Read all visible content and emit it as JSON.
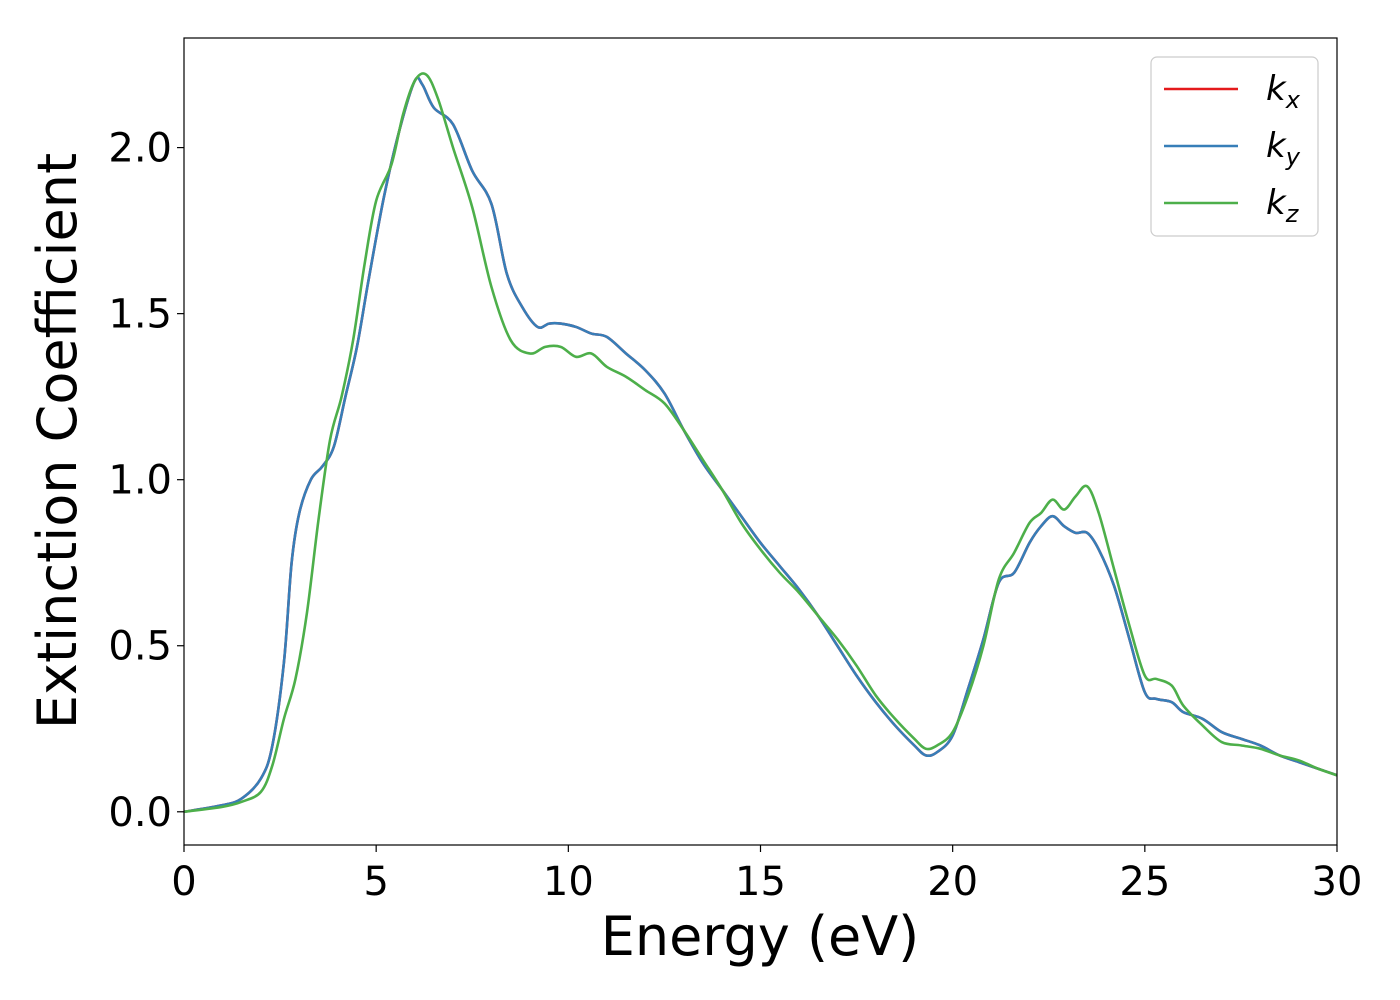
{
  "chart_data": {
    "type": "line",
    "xlabel": "Energy (eV)",
    "ylabel": "Extinction Coefficient",
    "xlim": [
      0,
      30
    ],
    "ylim": [
      -0.1,
      2.33
    ],
    "xticks": [
      0,
      5,
      10,
      15,
      20,
      25,
      30
    ],
    "xtick_labels": [
      "0",
      "5",
      "10",
      "15",
      "20",
      "25",
      "30"
    ],
    "yticks": [
      0.0,
      0.5,
      1.0,
      1.5,
      2.0
    ],
    "ytick_labels": [
      "0.0",
      "0.5",
      "1.0",
      "1.5",
      "2.0"
    ],
    "grid": false,
    "legend_position": "top-right",
    "series": [
      {
        "name": "k",
        "subscript": "x",
        "color": "#e41a1c",
        "x": [
          0,
          1,
          1.5,
          2,
          2.3,
          2.6,
          2.8,
          3,
          3.3,
          3.6,
          3.9,
          4.2,
          4.5,
          4.8,
          5.2,
          5.6,
          6.0,
          6.2,
          6.5,
          7.0,
          7.5,
          8.0,
          8.4,
          8.8,
          9.2,
          9.5,
          9.8,
          10.2,
          10.6,
          11.0,
          11.5,
          12.0,
          12.5,
          13.0,
          13.5,
          14.0,
          14.5,
          15.0,
          15.5,
          16.0,
          16.5,
          17.0,
          17.5,
          18.0,
          18.5,
          19.0,
          19.3,
          19.6,
          20.0,
          20.4,
          20.8,
          21.2,
          21.6,
          22.0,
          22.3,
          22.6,
          22.9,
          23.2,
          23.5,
          23.8,
          24.2,
          24.6,
          25.0,
          25.3,
          25.7,
          26.0,
          26.5,
          27.0,
          27.5,
          28.0,
          28.5,
          29.0,
          29.5,
          30.0
        ],
        "y": [
          0,
          0.02,
          0.04,
          0.1,
          0.2,
          0.45,
          0.75,
          0.9,
          1.0,
          1.04,
          1.1,
          1.25,
          1.4,
          1.6,
          1.85,
          2.05,
          2.2,
          2.19,
          2.12,
          2.07,
          1.93,
          1.83,
          1.62,
          1.52,
          1.46,
          1.47,
          1.47,
          1.46,
          1.44,
          1.43,
          1.38,
          1.33,
          1.26,
          1.15,
          1.05,
          0.97,
          0.89,
          0.81,
          0.74,
          0.67,
          0.59,
          0.5,
          0.41,
          0.33,
          0.26,
          0.2,
          0.17,
          0.18,
          0.23,
          0.37,
          0.52,
          0.69,
          0.72,
          0.81,
          0.86,
          0.89,
          0.86,
          0.84,
          0.84,
          0.79,
          0.68,
          0.52,
          0.36,
          0.34,
          0.33,
          0.3,
          0.28,
          0.24,
          0.22,
          0.2,
          0.17,
          0.15,
          0.13,
          0.11
        ]
      },
      {
        "name": "k",
        "subscript": "y",
        "color": "#377eb8",
        "x": [
          0,
          1,
          1.5,
          2,
          2.3,
          2.6,
          2.8,
          3,
          3.3,
          3.6,
          3.9,
          4.2,
          4.5,
          4.8,
          5.2,
          5.6,
          6.0,
          6.2,
          6.5,
          7.0,
          7.5,
          8.0,
          8.4,
          8.8,
          9.2,
          9.5,
          9.8,
          10.2,
          10.6,
          11.0,
          11.5,
          12.0,
          12.5,
          13.0,
          13.5,
          14.0,
          14.5,
          15.0,
          15.5,
          16.0,
          16.5,
          17.0,
          17.5,
          18.0,
          18.5,
          19.0,
          19.3,
          19.6,
          20.0,
          20.4,
          20.8,
          21.2,
          21.6,
          22.0,
          22.3,
          22.6,
          22.9,
          23.2,
          23.5,
          23.8,
          24.2,
          24.6,
          25.0,
          25.3,
          25.7,
          26.0,
          26.5,
          27.0,
          27.5,
          28.0,
          28.5,
          29.0,
          29.5,
          30.0
        ],
        "y": [
          0,
          0.02,
          0.04,
          0.1,
          0.2,
          0.45,
          0.75,
          0.9,
          1.0,
          1.04,
          1.1,
          1.25,
          1.4,
          1.6,
          1.85,
          2.05,
          2.2,
          2.19,
          2.12,
          2.07,
          1.93,
          1.83,
          1.62,
          1.52,
          1.46,
          1.47,
          1.47,
          1.46,
          1.44,
          1.43,
          1.38,
          1.33,
          1.26,
          1.15,
          1.05,
          0.97,
          0.89,
          0.81,
          0.74,
          0.67,
          0.59,
          0.5,
          0.41,
          0.33,
          0.26,
          0.2,
          0.17,
          0.18,
          0.23,
          0.37,
          0.52,
          0.69,
          0.72,
          0.81,
          0.86,
          0.89,
          0.86,
          0.84,
          0.84,
          0.79,
          0.68,
          0.52,
          0.36,
          0.34,
          0.33,
          0.3,
          0.28,
          0.24,
          0.22,
          0.2,
          0.17,
          0.15,
          0.13,
          0.11
        ]
      },
      {
        "name": "k",
        "subscript": "z",
        "color": "#4daf4a",
        "x": [
          0,
          1,
          1.5,
          2,
          2.3,
          2.6,
          2.9,
          3.2,
          3.5,
          3.8,
          4.1,
          4.4,
          4.7,
          5.0,
          5.4,
          5.7,
          6.0,
          6.3,
          6.6,
          7.0,
          7.5,
          8.0,
          8.5,
          9.0,
          9.4,
          9.8,
          10.2,
          10.6,
          11.0,
          11.5,
          12.0,
          12.5,
          13.0,
          13.5,
          14.0,
          14.5,
          15.0,
          15.5,
          16.0,
          16.5,
          17.0,
          17.5,
          18.0,
          18.5,
          19.0,
          19.3,
          19.6,
          20.0,
          20.4,
          20.8,
          21.2,
          21.6,
          22.0,
          22.3,
          22.6,
          22.9,
          23.2,
          23.5,
          23.8,
          24.2,
          24.6,
          25.0,
          25.3,
          25.7,
          26.0,
          26.5,
          27.0,
          27.5,
          28.0,
          28.5,
          29.0,
          29.5,
          30.0
        ],
        "y": [
          0,
          0.015,
          0.03,
          0.06,
          0.14,
          0.28,
          0.4,
          0.6,
          0.88,
          1.12,
          1.25,
          1.42,
          1.65,
          1.84,
          1.95,
          2.1,
          2.2,
          2.22,
          2.15,
          2.0,
          1.82,
          1.58,
          1.42,
          1.38,
          1.4,
          1.4,
          1.37,
          1.38,
          1.34,
          1.31,
          1.27,
          1.23,
          1.15,
          1.06,
          0.97,
          0.87,
          0.79,
          0.72,
          0.66,
          0.59,
          0.52,
          0.44,
          0.35,
          0.28,
          0.22,
          0.19,
          0.2,
          0.24,
          0.35,
          0.5,
          0.7,
          0.78,
          0.87,
          0.9,
          0.94,
          0.91,
          0.95,
          0.98,
          0.9,
          0.73,
          0.56,
          0.41,
          0.4,
          0.38,
          0.32,
          0.26,
          0.21,
          0.2,
          0.19,
          0.17,
          0.155,
          0.13,
          0.11
        ]
      }
    ]
  }
}
